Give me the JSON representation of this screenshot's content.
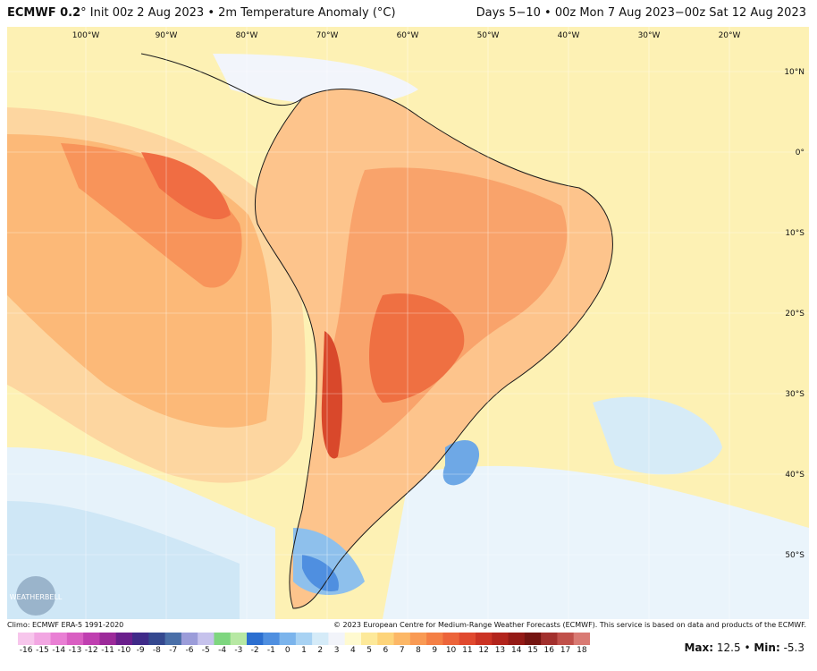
{
  "header": {
    "model": "ECMWF 0.2",
    "degree_symbol": "°",
    "init": "Init 00z 2 Aug 2023",
    "separator": "•",
    "product": "2m Temperature Anomaly (°C)",
    "valid_range": "Days 5−10 • 00z Mon 7 Aug 2023−00z Sat 12 Aug 2023"
  },
  "map": {
    "lon_labels": [
      "100°W",
      "90°W",
      "80°W",
      "70°W",
      "60°W",
      "50°W",
      "40°W",
      "30°W",
      "20°W"
    ],
    "lat_labels": [
      "10°N",
      "0°",
      "10°S",
      "20°S",
      "30°S",
      "40°S",
      "50°S"
    ],
    "logo_text": "WEATHERBELL",
    "region_view": "South America",
    "background_color": "#fdf1b4",
    "ocean_neutral_color": "#f2f5fb"
  },
  "footer": {
    "climo": "Climo: ECMWF ERA-5 1991-2020",
    "copyright": "© 2023 European Centre for Medium-Range Weather Forecasts (ECMWF). This service is based on data and products of the ECMWF."
  },
  "colorbar": {
    "ticks": [
      "-16",
      "-15",
      "-14",
      "-13",
      "-12",
      "-11",
      "-10",
      "-9",
      "-8",
      "-7",
      "-6",
      "-5",
      "-4",
      "-3",
      "-2",
      "-1",
      "0",
      "1",
      "2",
      "3",
      "4",
      "5",
      "6",
      "7",
      "8",
      "9",
      "10",
      "11",
      "12",
      "13",
      "14",
      "15",
      "16",
      "17",
      "18"
    ],
    "colors": [
      "#f7c6ec",
      "#f2a6e2",
      "#e97fd4",
      "#d95fc2",
      "#bf3fb0",
      "#9c2a9a",
      "#6a1f8c",
      "#3f2a88",
      "#34488f",
      "#4a6fa8",
      "#9b9cd9",
      "#c6c2ec",
      "#7ed67f",
      "#b7e8a3",
      "#2c6fd0",
      "#4f8fe0",
      "#7bb4ec",
      "#a8d2f3",
      "#d5ebf8",
      "#f2f4fa",
      "#fffad0",
      "#fde99a",
      "#fdd47a",
      "#fcb766",
      "#f99a54",
      "#f47f45",
      "#ec643a",
      "#e0492f",
      "#cb3324",
      "#b2241c",
      "#941a16",
      "#741411",
      "#a2302d",
      "#c0504a",
      "#d97a73"
    ],
    "max_label": "Max:",
    "max_value": "12.5",
    "stat_separator": "•",
    "min_label": "Min:",
    "min_value": "-5.3"
  }
}
